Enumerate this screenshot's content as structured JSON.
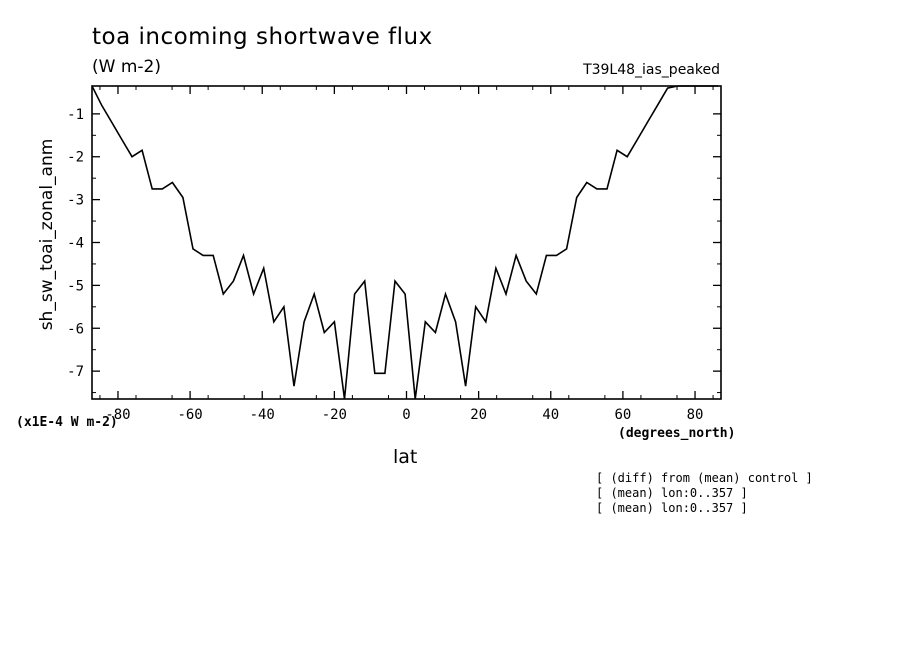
{
  "header": {
    "title": "toa incoming shortwave flux",
    "subtitle": "(W m-2)",
    "run_label": "T39L48_ias_peaked"
  },
  "axes": {
    "y_units_note": "(x1E-4 W m-2)",
    "x_units_note": "(degrees_north)"
  },
  "notes": [
    "[ (diff) from (mean) control ]",
    "[ (mean) lon:0..357 ]",
    "[ (mean) lon:0..357 ]"
  ],
  "chart_data": {
    "type": "line",
    "title": "toa incoming shortwave flux",
    "xlabel": "lat",
    "ylabel": "sh_sw_toai_zonal_anm",
    "xlim": [
      -87.2,
      87.2
    ],
    "ylim": [
      -7.65,
      -0.35
    ],
    "xticks": [
      -80,
      -60,
      -40,
      -20,
      0,
      20,
      40,
      60,
      80
    ],
    "xtick_labels": [
      "-80",
      "-60",
      "-40",
      "-20",
      "0",
      "20",
      "40",
      "60",
      "80"
    ],
    "yticks": [
      -7,
      -6,
      -5,
      -4,
      -3,
      -2,
      -1
    ],
    "ytick_labels": [
      "-7",
      "-6",
      "-5",
      "-4",
      "-3",
      "-2",
      "-1"
    ],
    "grid": false,
    "series": [
      {
        "x": [
          -87.2,
          -84.5,
          -81.7,
          -78.9,
          -76.1,
          -73.3,
          -70.5,
          -67.7,
          -64.9,
          -62.0,
          -59.2,
          -56.4,
          -53.6,
          -50.8,
          -48.0,
          -45.2,
          -42.4,
          -39.6,
          -36.8,
          -34.0,
          -31.2,
          -28.4,
          -25.6,
          -22.8,
          -20.0,
          -17.2,
          -14.4,
          -11.6,
          -8.8,
          -6.0,
          -3.2,
          -0.4,
          2.4,
          5.2,
          8.0,
          10.8,
          13.6,
          16.4,
          19.2,
          22.0,
          24.8,
          27.6,
          30.4,
          33.2,
          36.0,
          38.8,
          41.6,
          44.4,
          47.2,
          50.0,
          52.8,
          55.6,
          58.4,
          61.2,
          64.0,
          66.8,
          69.6,
          72.4,
          75.2,
          78.0,
          80.8,
          83.6,
          86.4
        ],
        "values": [
          -0.35,
          -0.8,
          -1.2,
          -1.6,
          -2.0,
          -1.85,
          -2.75,
          -2.75,
          -2.6,
          -2.95,
          -4.15,
          -4.3,
          -4.3,
          -5.2,
          -4.9,
          -4.3,
          -5.2,
          -4.6,
          -5.85,
          -5.5,
          -7.35,
          -5.85,
          -5.2,
          -6.1,
          -5.85,
          -7.65,
          -5.2,
          -4.9,
          -7.05,
          -7.05,
          -4.9,
          -5.2,
          -7.65,
          -5.85,
          -6.1,
          -5.2,
          -5.85,
          -7.35,
          -5.5,
          -5.85,
          -4.6,
          -5.2,
          -4.3,
          -4.9,
          -5.2,
          -4.3,
          -4.3,
          -4.15,
          -2.95,
          -2.6,
          -2.75,
          -2.75,
          -1.85,
          -2.0,
          -1.6,
          -1.2,
          -0.8,
          -0.4,
          -0.35,
          -0.35,
          -0.35,
          -0.35,
          -0.35
        ]
      }
    ]
  }
}
